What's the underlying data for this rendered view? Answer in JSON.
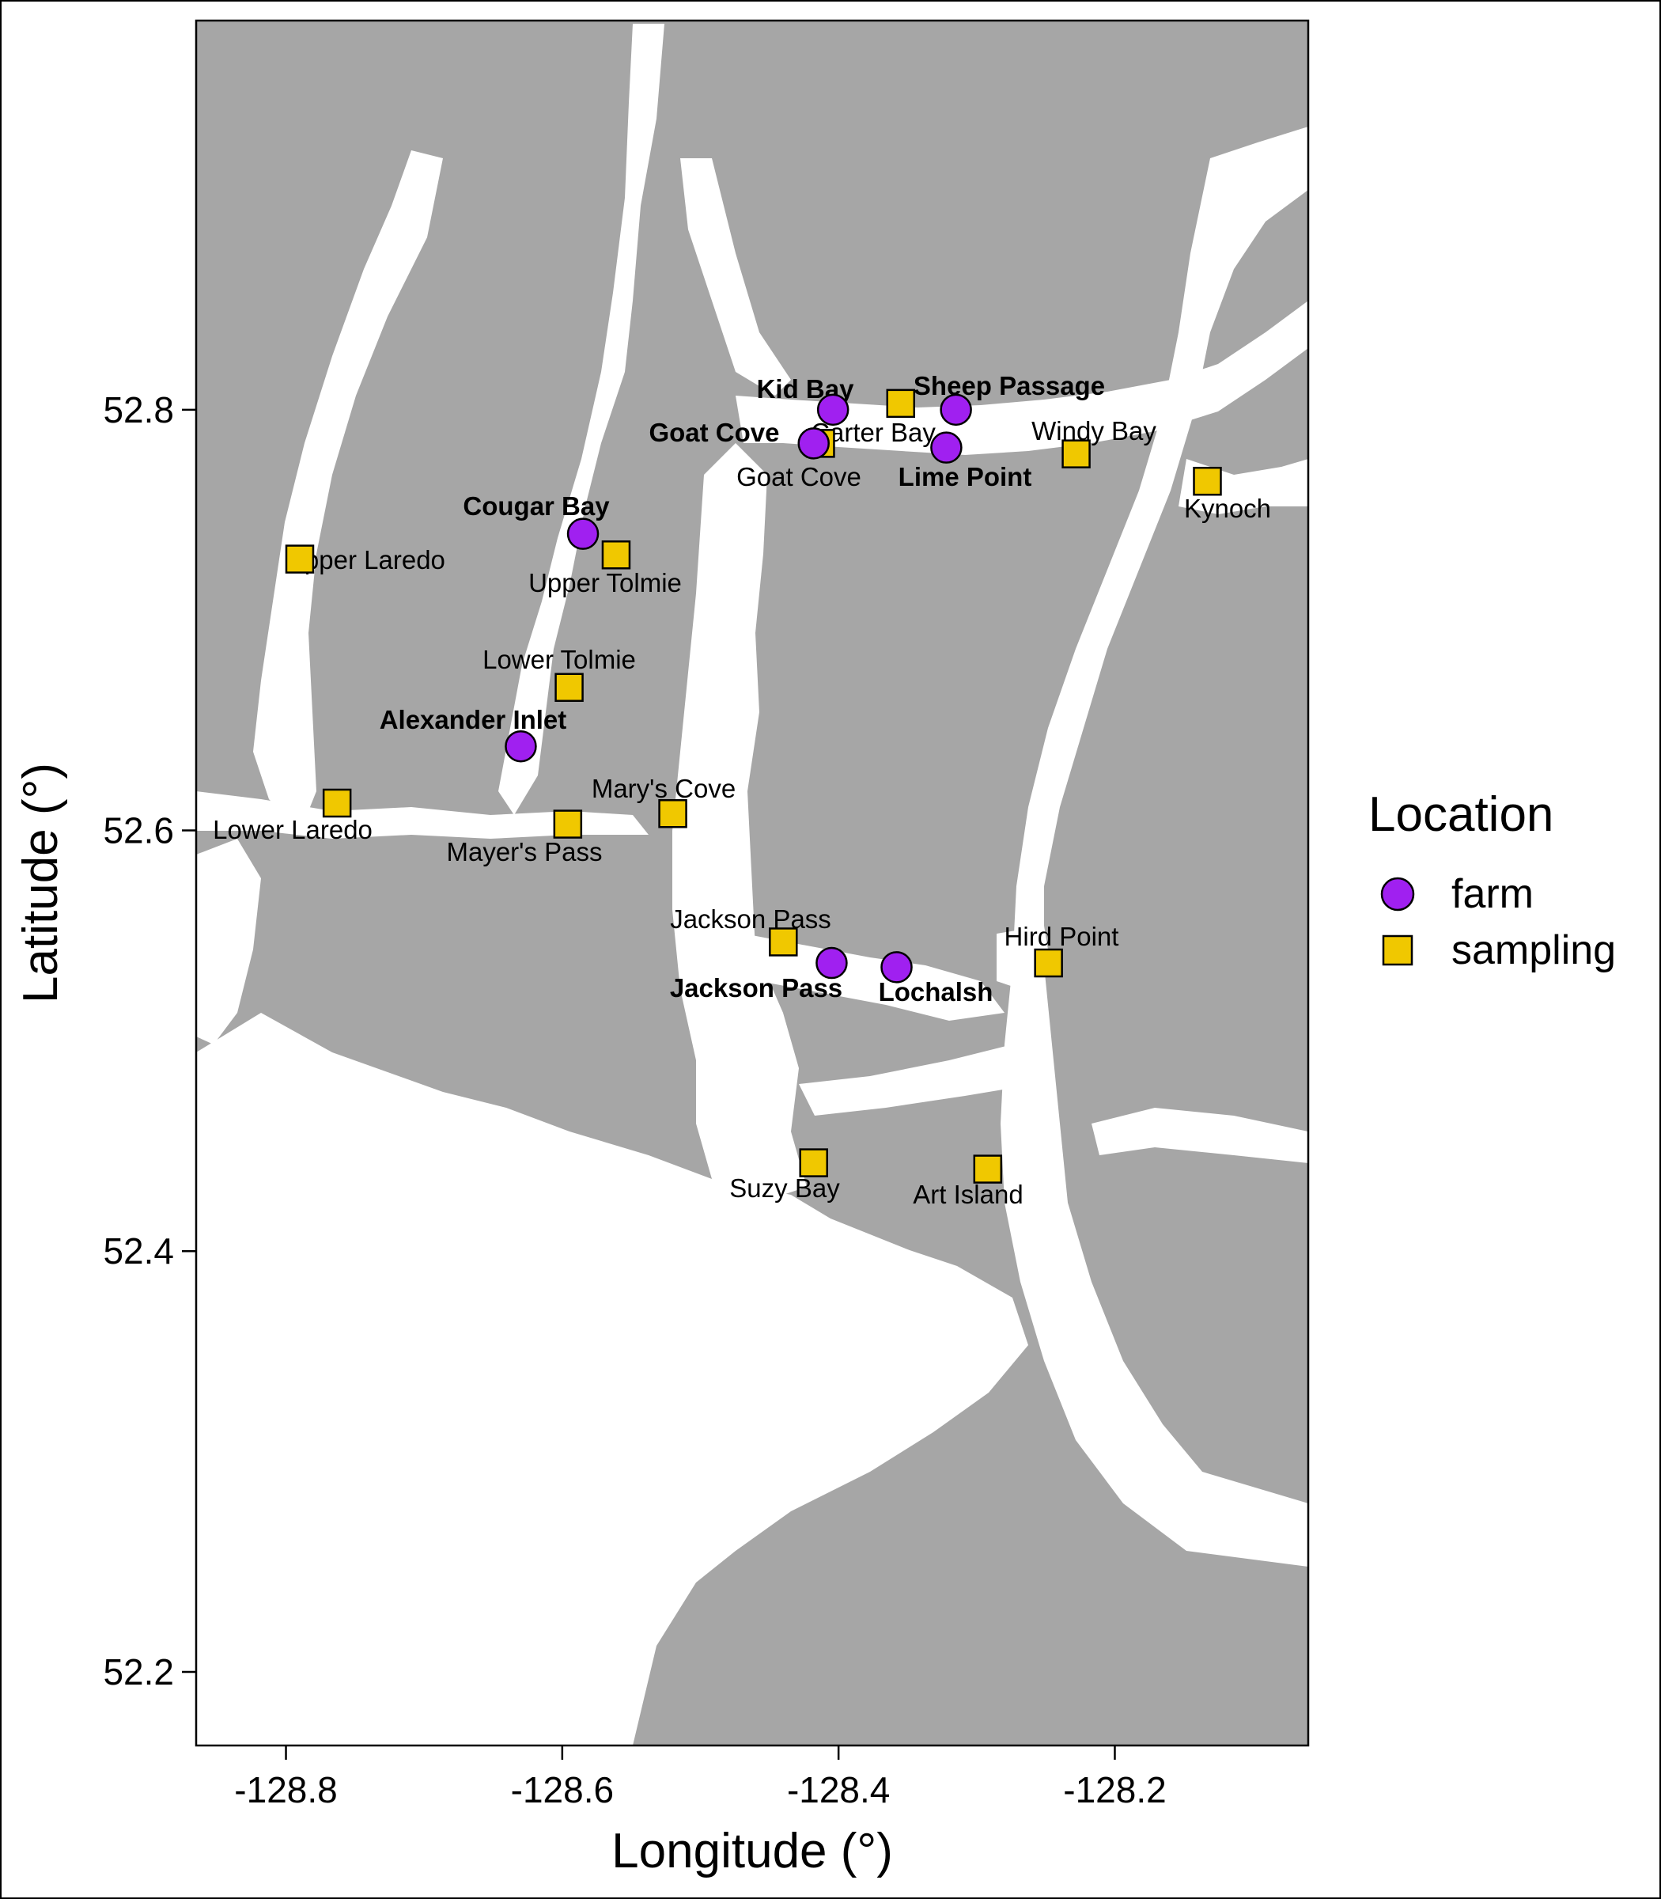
{
  "map": {
    "xlabel": "Longitude (°)",
    "ylabel": "Latitude (°)",
    "xlim": [
      -128.865,
      -128.06
    ],
    "ylim": [
      52.165,
      52.985
    ],
    "x_ticks": [
      {
        "value": -128.8,
        "label": "-128.8"
      },
      {
        "value": -128.6,
        "label": "-128.6"
      },
      {
        "value": -128.4,
        "label": "-128.4"
      },
      {
        "value": -128.2,
        "label": "-128.2"
      }
    ],
    "y_ticks": [
      {
        "value": 52.2,
        "label": "52.2"
      },
      {
        "value": 52.4,
        "label": "52.4"
      },
      {
        "value": 52.6,
        "label": "52.6"
      },
      {
        "value": 52.8,
        "label": "52.8"
      }
    ],
    "colors": {
      "land": "#a6a6a6",
      "water": "#ffffff",
      "farm": "#a020f0",
      "sampling": "#f0c800"
    }
  },
  "legend": {
    "title": "Location",
    "items": [
      {
        "label": "farm",
        "shape": "circle",
        "color": "#a020f0"
      },
      {
        "label": "sampling",
        "shape": "square",
        "color": "#f0c800"
      }
    ]
  },
  "farms": [
    {
      "name": "Kid Bay",
      "lon": -128.404,
      "lat": 52.8
    },
    {
      "name": "Sheep Passage",
      "lon": -128.315,
      "lat": 52.8
    },
    {
      "name": "Goat Cove",
      "lon": -128.418,
      "lat": 52.784
    },
    {
      "name": "Lime Point",
      "lon": -128.322,
      "lat": 52.782
    },
    {
      "name": "Cougar Bay",
      "lon": -128.585,
      "lat": 52.741
    },
    {
      "name": "Alexander Inlet",
      "lon": -128.63,
      "lat": 52.64
    },
    {
      "name": "Jackson Pass",
      "lon": -128.405,
      "lat": 52.537
    },
    {
      "name": "Lochalsh",
      "lon": -128.358,
      "lat": 52.535
    }
  ],
  "sampling": [
    {
      "name": "Carter Bay",
      "lon": -128.355,
      "lat": 52.803
    },
    {
      "name": "Goat Cove",
      "lon": -128.413,
      "lat": 52.784
    },
    {
      "name": "Windy Bay",
      "lon": -128.228,
      "lat": 52.779
    },
    {
      "name": "Kynoch",
      "lon": -128.133,
      "lat": 52.766
    },
    {
      "name": "Upper Laredo",
      "lon": -128.79,
      "lat": 52.729
    },
    {
      "name": "Upper Tolmie",
      "lon": -128.561,
      "lat": 52.731
    },
    {
      "name": "Lower Tolmie",
      "lon": -128.595,
      "lat": 52.668
    },
    {
      "name": "Lower Laredo",
      "lon": -128.763,
      "lat": 52.613
    },
    {
      "name": "Mayer's Pass",
      "lon": -128.596,
      "lat": 52.603
    },
    {
      "name": "Mary's Cove",
      "lon": -128.52,
      "lat": 52.608
    },
    {
      "name": "Jackson Pass",
      "lon": -128.44,
      "lat": 52.547
    },
    {
      "name": "Hird Point",
      "lon": -128.248,
      "lat": 52.537
    },
    {
      "name": "Suzy Bay",
      "lon": -128.418,
      "lat": 52.442
    },
    {
      "name": "Art Island",
      "lon": -128.292,
      "lat": 52.439
    }
  ]
}
